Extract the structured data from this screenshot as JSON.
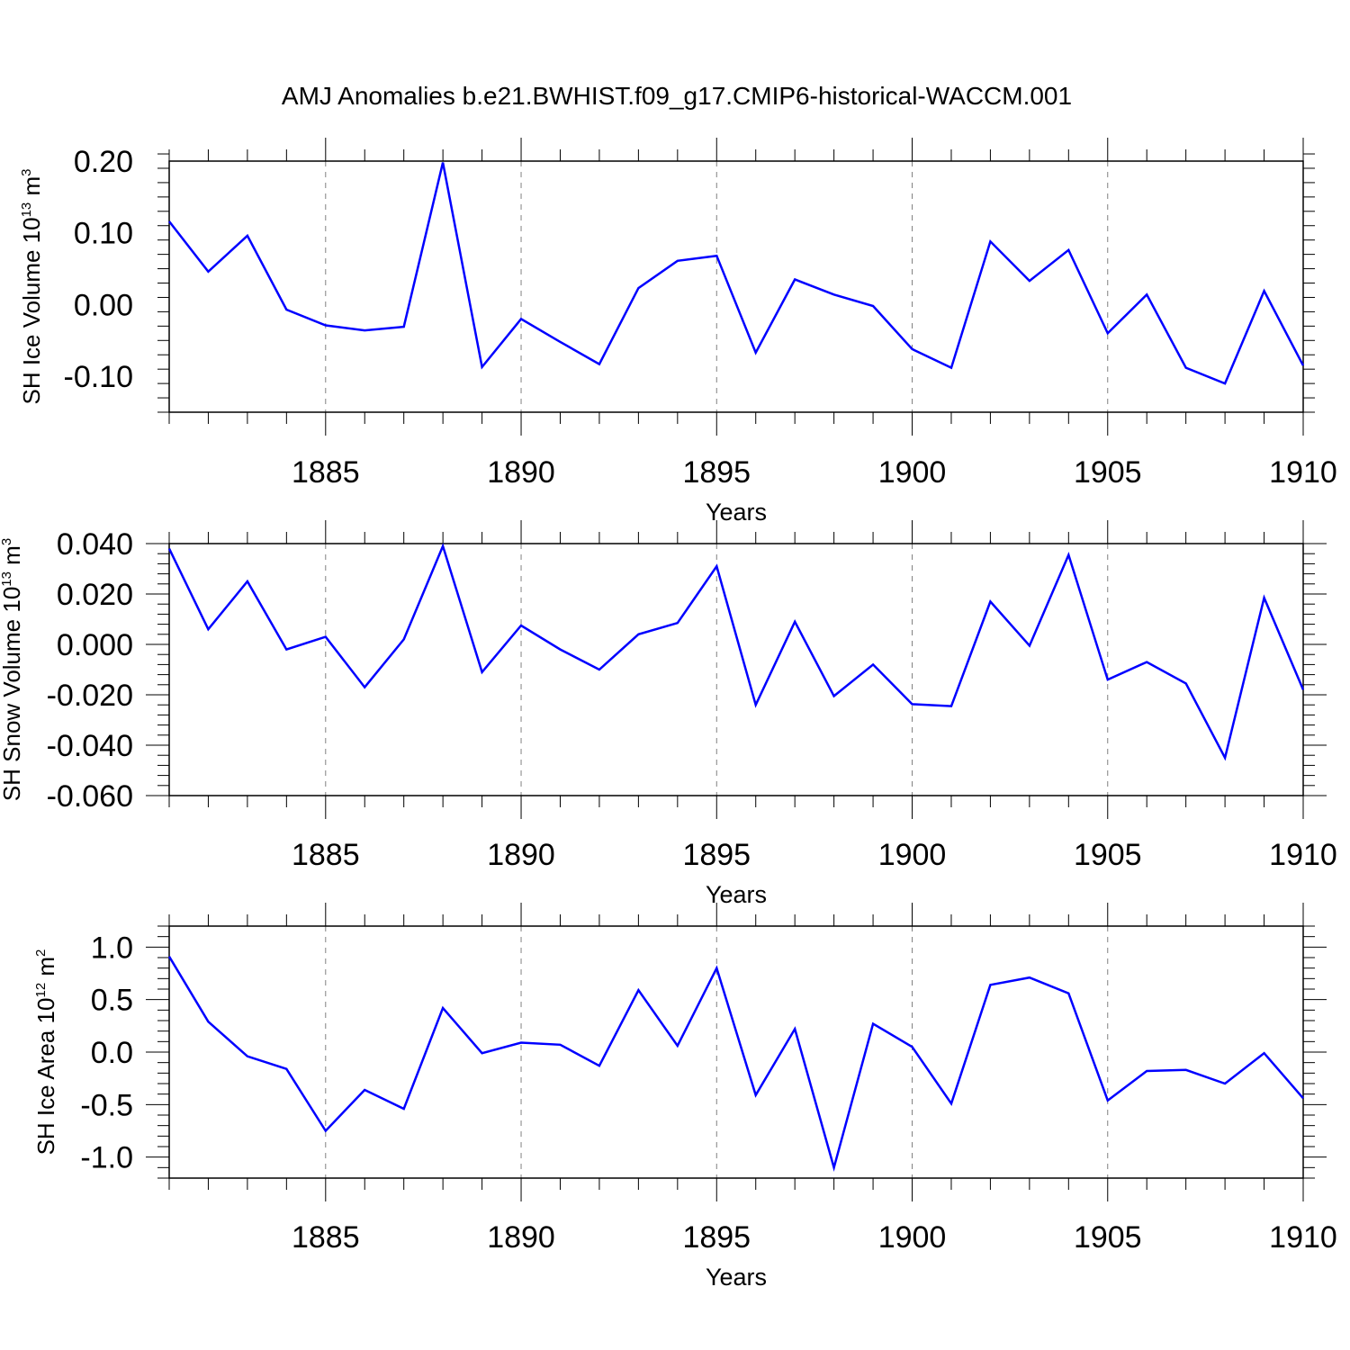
{
  "figure": {
    "title": "AMJ Anomalies b.e21.BWHIST.f09_g17.CMIP6-historical-WACCM.001"
  },
  "colors": {
    "line": "#0000ff",
    "axis": "#000000",
    "grid": "#808080"
  },
  "chart_data": [
    {
      "type": "line",
      "ylabel": {
        "main": "SH Ice Volume 10",
        "exp": "13",
        "unit": " m",
        "unit_exp": "3"
      },
      "xlabel": "Years",
      "xlim": [
        1881,
        1910
      ],
      "ylim": [
        -0.15,
        0.2
      ],
      "yticks": [
        -0.1,
        0.0,
        0.1,
        0.2
      ],
      "ytick_labels": [
        "-0.10",
        "0.00",
        "0.10",
        "0.20"
      ],
      "xticks": [
        1885,
        1890,
        1895,
        1900,
        1905,
        1910
      ],
      "xtick_labels": [
        "1885",
        "1890",
        "1895",
        "1900",
        "1905",
        "1910"
      ],
      "grid": "vertical dashed at major x ticks",
      "x": [
        1881,
        1882,
        1883,
        1884,
        1885,
        1886,
        1887,
        1888,
        1889,
        1890,
        1891,
        1892,
        1893,
        1894,
        1895,
        1896,
        1897,
        1898,
        1899,
        1900,
        1901,
        1902,
        1903,
        1904,
        1905,
        1906,
        1907,
        1908,
        1909,
        1910
      ],
      "values": [
        0.116,
        0.046,
        0.096,
        -0.007,
        -0.029,
        -0.036,
        -0.031,
        0.198,
        -0.087,
        -0.02,
        -0.052,
        -0.083,
        0.023,
        0.061,
        0.068,
        -0.067,
        0.035,
        0.014,
        -0.002,
        -0.062,
        -0.088,
        0.088,
        0.033,
        0.076,
        -0.04,
        0.014,
        -0.088,
        -0.11,
        0.019,
        -0.085
      ]
    },
    {
      "type": "line",
      "ylabel": {
        "main": "SH Snow Volume 10",
        "exp": "13",
        "unit": " m",
        "unit_exp": "3"
      },
      "xlabel": "Years",
      "xlim": [
        1881,
        1910
      ],
      "ylim": [
        -0.06,
        0.04
      ],
      "yticks": [
        -0.06,
        -0.04,
        -0.02,
        0.0,
        0.02,
        0.04
      ],
      "ytick_labels": [
        "-0.060",
        "-0.040",
        "-0.020",
        "0.000",
        "0.020",
        "0.040"
      ],
      "xticks": [
        1885,
        1890,
        1895,
        1900,
        1905,
        1910
      ],
      "xtick_labels": [
        "1885",
        "1890",
        "1895",
        "1900",
        "1905",
        "1910"
      ],
      "grid": "vertical dashed at major x ticks",
      "x": [
        1881,
        1882,
        1883,
        1884,
        1885,
        1886,
        1887,
        1888,
        1889,
        1890,
        1891,
        1892,
        1893,
        1894,
        1895,
        1896,
        1897,
        1898,
        1899,
        1900,
        1901,
        1902,
        1903,
        1904,
        1905,
        1906,
        1907,
        1908,
        1909,
        1910
      ],
      "values": [
        0.038,
        0.006,
        0.025,
        -0.002,
        0.003,
        -0.017,
        0.002,
        0.039,
        -0.011,
        0.0075,
        -0.002,
        -0.01,
        0.004,
        0.0085,
        0.031,
        -0.024,
        0.009,
        -0.0205,
        -0.008,
        -0.0237,
        -0.0245,
        0.017,
        -0.0005,
        0.0355,
        -0.014,
        -0.007,
        -0.0155,
        -0.045,
        0.0185,
        -0.018
      ]
    },
    {
      "type": "line",
      "ylabel": {
        "main": "SH Ice Area 10",
        "exp": "12",
        "unit": " m",
        "unit_exp": "2"
      },
      "xlabel": "Years",
      "xlim": [
        1881,
        1910
      ],
      "ylim": [
        -1.2,
        1.2
      ],
      "yticks": [
        -1.0,
        -0.5,
        0.0,
        0.5,
        1.0
      ],
      "ytick_labels": [
        "-1.0",
        "-0.5",
        "0.0",
        "0.5",
        "1.0"
      ],
      "xticks": [
        1885,
        1890,
        1895,
        1900,
        1905,
        1910
      ],
      "xtick_labels": [
        "1885",
        "1890",
        "1895",
        "1900",
        "1905",
        "1910"
      ],
      "grid": "vertical dashed at major x ticks",
      "x": [
        1881,
        1882,
        1883,
        1884,
        1885,
        1886,
        1887,
        1888,
        1889,
        1890,
        1891,
        1892,
        1893,
        1894,
        1895,
        1896,
        1897,
        1898,
        1899,
        1900,
        1901,
        1902,
        1903,
        1904,
        1905,
        1906,
        1907,
        1908,
        1909,
        1910
      ],
      "values": [
        0.91,
        0.29,
        -0.04,
        -0.16,
        -0.75,
        -0.36,
        -0.54,
        0.42,
        -0.01,
        0.09,
        0.07,
        -0.13,
        0.59,
        0.06,
        0.8,
        -0.41,
        0.22,
        -1.1,
        0.27,
        0.05,
        -0.49,
        0.64,
        0.71,
        0.56,
        -0.46,
        -0.18,
        -0.17,
        -0.3,
        -0.01,
        -0.44
      ]
    }
  ]
}
